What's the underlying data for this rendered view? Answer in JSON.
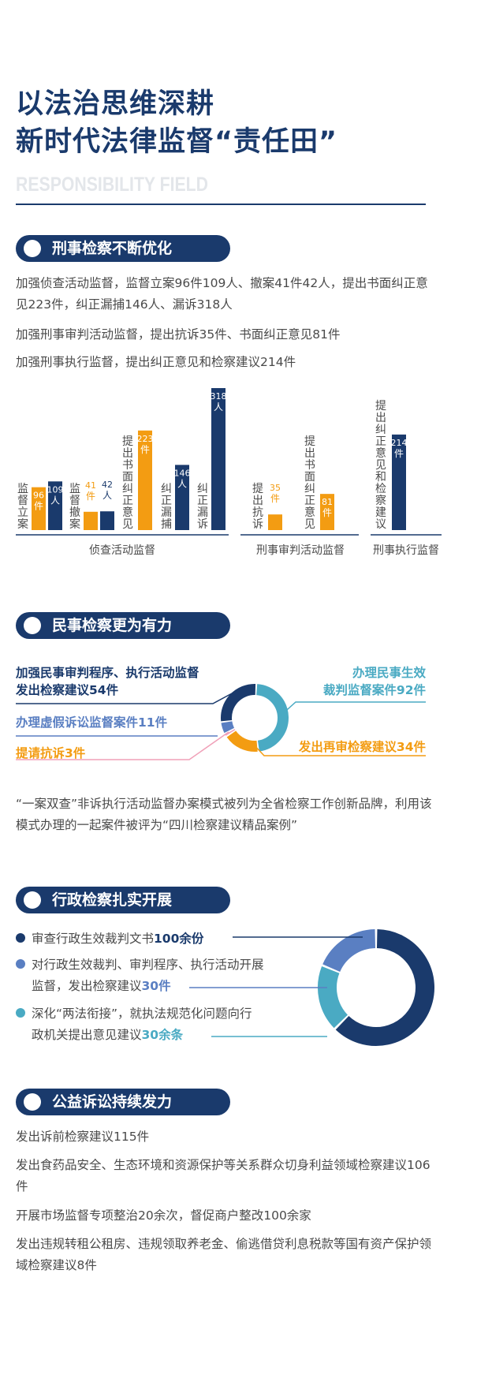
{
  "header": {
    "title_line1": "以法治思维深耕",
    "title_line2": "新时代法律监督“责任田”",
    "subtitle": "RESPONSIBILITY FIELD"
  },
  "colors": {
    "navy": "#1a3a6c",
    "orange": "#f39c12",
    "teal": "#4aaac3",
    "mid_blue": "#5a7fc2",
    "pink": "#f0a0b8"
  },
  "criminal": {
    "heading": "刑事检察不断优化",
    "lines": [
      "加强侦查活动监督，监督立案96件109人、撤案41件42人，提出书面纠正意见223件，纠正漏捕146人、漏诉318人",
      "加强刑事审判活动监督，提出抗诉35件、书面纠正意见81件",
      "加强刑事执行监督，提出纠正意见和检察建议214件"
    ]
  },
  "chart_data": {
    "type": "bar",
    "groups": [
      {
        "name": "侦查活动监督",
        "bars": [
          {
            "category": "监督立案",
            "value": 96,
            "label": "96件",
            "color": "#f39c12"
          },
          {
            "category": "监督立案",
            "value": 109,
            "label": "109人",
            "color": "#1a3a6c"
          },
          {
            "category": "监督撤案",
            "value": 41,
            "label": "41件",
            "color": "#f39c12"
          },
          {
            "category": "监督撤案",
            "value": 42,
            "label": "42人",
            "color": "#1a3a6c"
          },
          {
            "category": "提出书面纠正意见",
            "value": 223,
            "label": "223件",
            "color": "#f39c12"
          },
          {
            "category": "纠正漏捕",
            "value": 146,
            "label": "146人",
            "color": "#1a3a6c"
          },
          {
            "category": "纠正漏诉",
            "value": 318,
            "label": "318人",
            "color": "#1a3a6c"
          }
        ]
      },
      {
        "name": "刑事审判活动监督",
        "bars": [
          {
            "category": "提出抗诉",
            "value": 35,
            "label": "35件",
            "color": "#f39c12"
          },
          {
            "category": "提出书面纠正意见",
            "value": 81,
            "label": "81件",
            "color": "#f39c12"
          }
        ]
      },
      {
        "name": "刑事执行监督",
        "bars": [
          {
            "category": "提出纠正意见和检察建议",
            "value": 214,
            "label": "214件",
            "color": "#1a3a6c"
          }
        ]
      }
    ],
    "category_labels": [
      "监督立案",
      "监督撤案",
      "提出书面纠正意见",
      "纠正漏捕",
      "纠正漏诉",
      "提出抗诉",
      "提出书面纠正意见",
      "提出纠正意见和检察建议"
    ]
  },
  "civil": {
    "heading": "民事检察更为有力",
    "donut": [
      {
        "label_line1": "加强民事审判程序、执行活动监督",
        "label_line2": "发出检察建议54件",
        "value": 54,
        "color": "#1a3a6c"
      },
      {
        "label_line1": "办理民事生效",
        "label_line2": "裁判监督案件92件",
        "value": 92,
        "color": "#4aaac3"
      },
      {
        "label_line1": "发出再审检察建议34件",
        "value": 34,
        "color": "#f39c12"
      },
      {
        "label_line1": "提请抗诉3件",
        "value": 3,
        "color": "#f0a0b8"
      },
      {
        "label_line1": "办理虚假诉讼监督案件11件",
        "value": 11,
        "color": "#5a7fc2"
      }
    ],
    "paragraph": "“一案双查”非诉执行活动监督办案模式被列为全省检察工作创新品牌，利用该模式办理的一起案件被评为“四川检察建议精品案例”"
  },
  "admin": {
    "heading": "行政检察扎实开展",
    "items": [
      {
        "pre": "审查行政生效裁判文书",
        "hl": "100余份",
        "color": "#1a3a6c",
        "value": 100
      },
      {
        "pre1": "对行政生效裁判、审判程序、执行活动开展",
        "pre": "监督，发出检察建议",
        "hl": "30件",
        "color": "#5a7fc2",
        "value": 30
      },
      {
        "pre1": "深化“两法衔接”，就执法规范化问题向行",
        "pre": "政机关提出意见建议",
        "hl": "30余条",
        "color": "#4aaac3",
        "value": 30
      }
    ]
  },
  "public": {
    "heading": "公益诉讼持续发力",
    "lines": [
      "发出诉前检察建议115件",
      "发出食药品安全、生态环境和资源保护等关系群众切身利益领域检察建议106件",
      "开展市场监督专项整治20余次，督促商户整改100余家",
      "发出违规转租公租房、违规领取养老金、偷逃借贷利息税款等国有资产保护领域检察建议8件"
    ]
  }
}
